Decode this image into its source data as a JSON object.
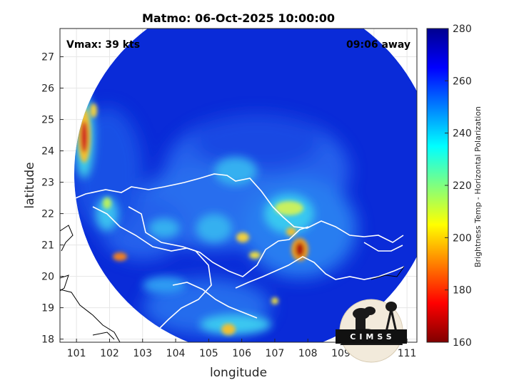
{
  "title": "Matmo: 06-Oct-2025 10:00:00",
  "annotations": {
    "vmax": "Vmax: 39 kts",
    "time_away": "09:06 away"
  },
  "axes": {
    "xlabel": "longitude",
    "ylabel": "latitude",
    "xlim": [
      100.5,
      111.3
    ],
    "ylim": [
      17.9,
      27.9
    ],
    "xticks": [
      "101",
      "102",
      "103",
      "104",
      "105",
      "106",
      "107",
      "108",
      "109",
      "110",
      "111"
    ],
    "yticks": [
      "27",
      "26",
      "25",
      "24",
      "23",
      "22",
      "21",
      "20",
      "19",
      "18"
    ],
    "grid": true
  },
  "colorbar": {
    "label": "Brightness Temp - Horizontal Polarization",
    "range": [
      160,
      280
    ],
    "ticks": [
      "280",
      "260",
      "240",
      "220",
      "200",
      "180",
      "160"
    ],
    "colormap": "jet"
  },
  "logo": {
    "text": "CIMSS"
  },
  "chart_data": {
    "type": "heatmap",
    "title": "Matmo: 06-Oct-2025 10:00:00",
    "xlabel": "longitude",
    "ylabel": "latitude",
    "xlim": [
      100.5,
      111.3
    ],
    "ylim": [
      17.9,
      27.9
    ],
    "value_label": "Brightness Temp - Horizontal Polarization",
    "value_range": [
      160,
      280
    ],
    "swath": {
      "shape": "circle",
      "center": [
        106.8,
        22.4
      ],
      "radius_deg": 5.5,
      "background_value": 268
    },
    "features": [
      {
        "name": "rainband",
        "points": [
          [
            101.3,
            25.8
          ],
          [
            101.0,
            24.8
          ],
          [
            101.2,
            24.1
          ],
          [
            101.6,
            23.5
          ],
          [
            101.7,
            24.8
          ]
        ],
        "value": 205
      },
      {
        "name": "cold-core-w",
        "lon": 101.2,
        "lat": 24.4,
        "value": 175
      },
      {
        "name": "cold-core-sw",
        "lon": 102.3,
        "lat": 20.6,
        "value": 190
      },
      {
        "name": "cold-core-e",
        "lon": 107.9,
        "lat": 20.9,
        "value": 170
      },
      {
        "name": "cold-core-c",
        "lon": 106.0,
        "lat": 21.2,
        "value": 205
      },
      {
        "name": "cold-core-s",
        "lon": 106.3,
        "lat": 18.3,
        "value": 205
      },
      {
        "name": "convection",
        "lon": 107.8,
        "lat": 21.9,
        "value": 220
      }
    ]
  }
}
